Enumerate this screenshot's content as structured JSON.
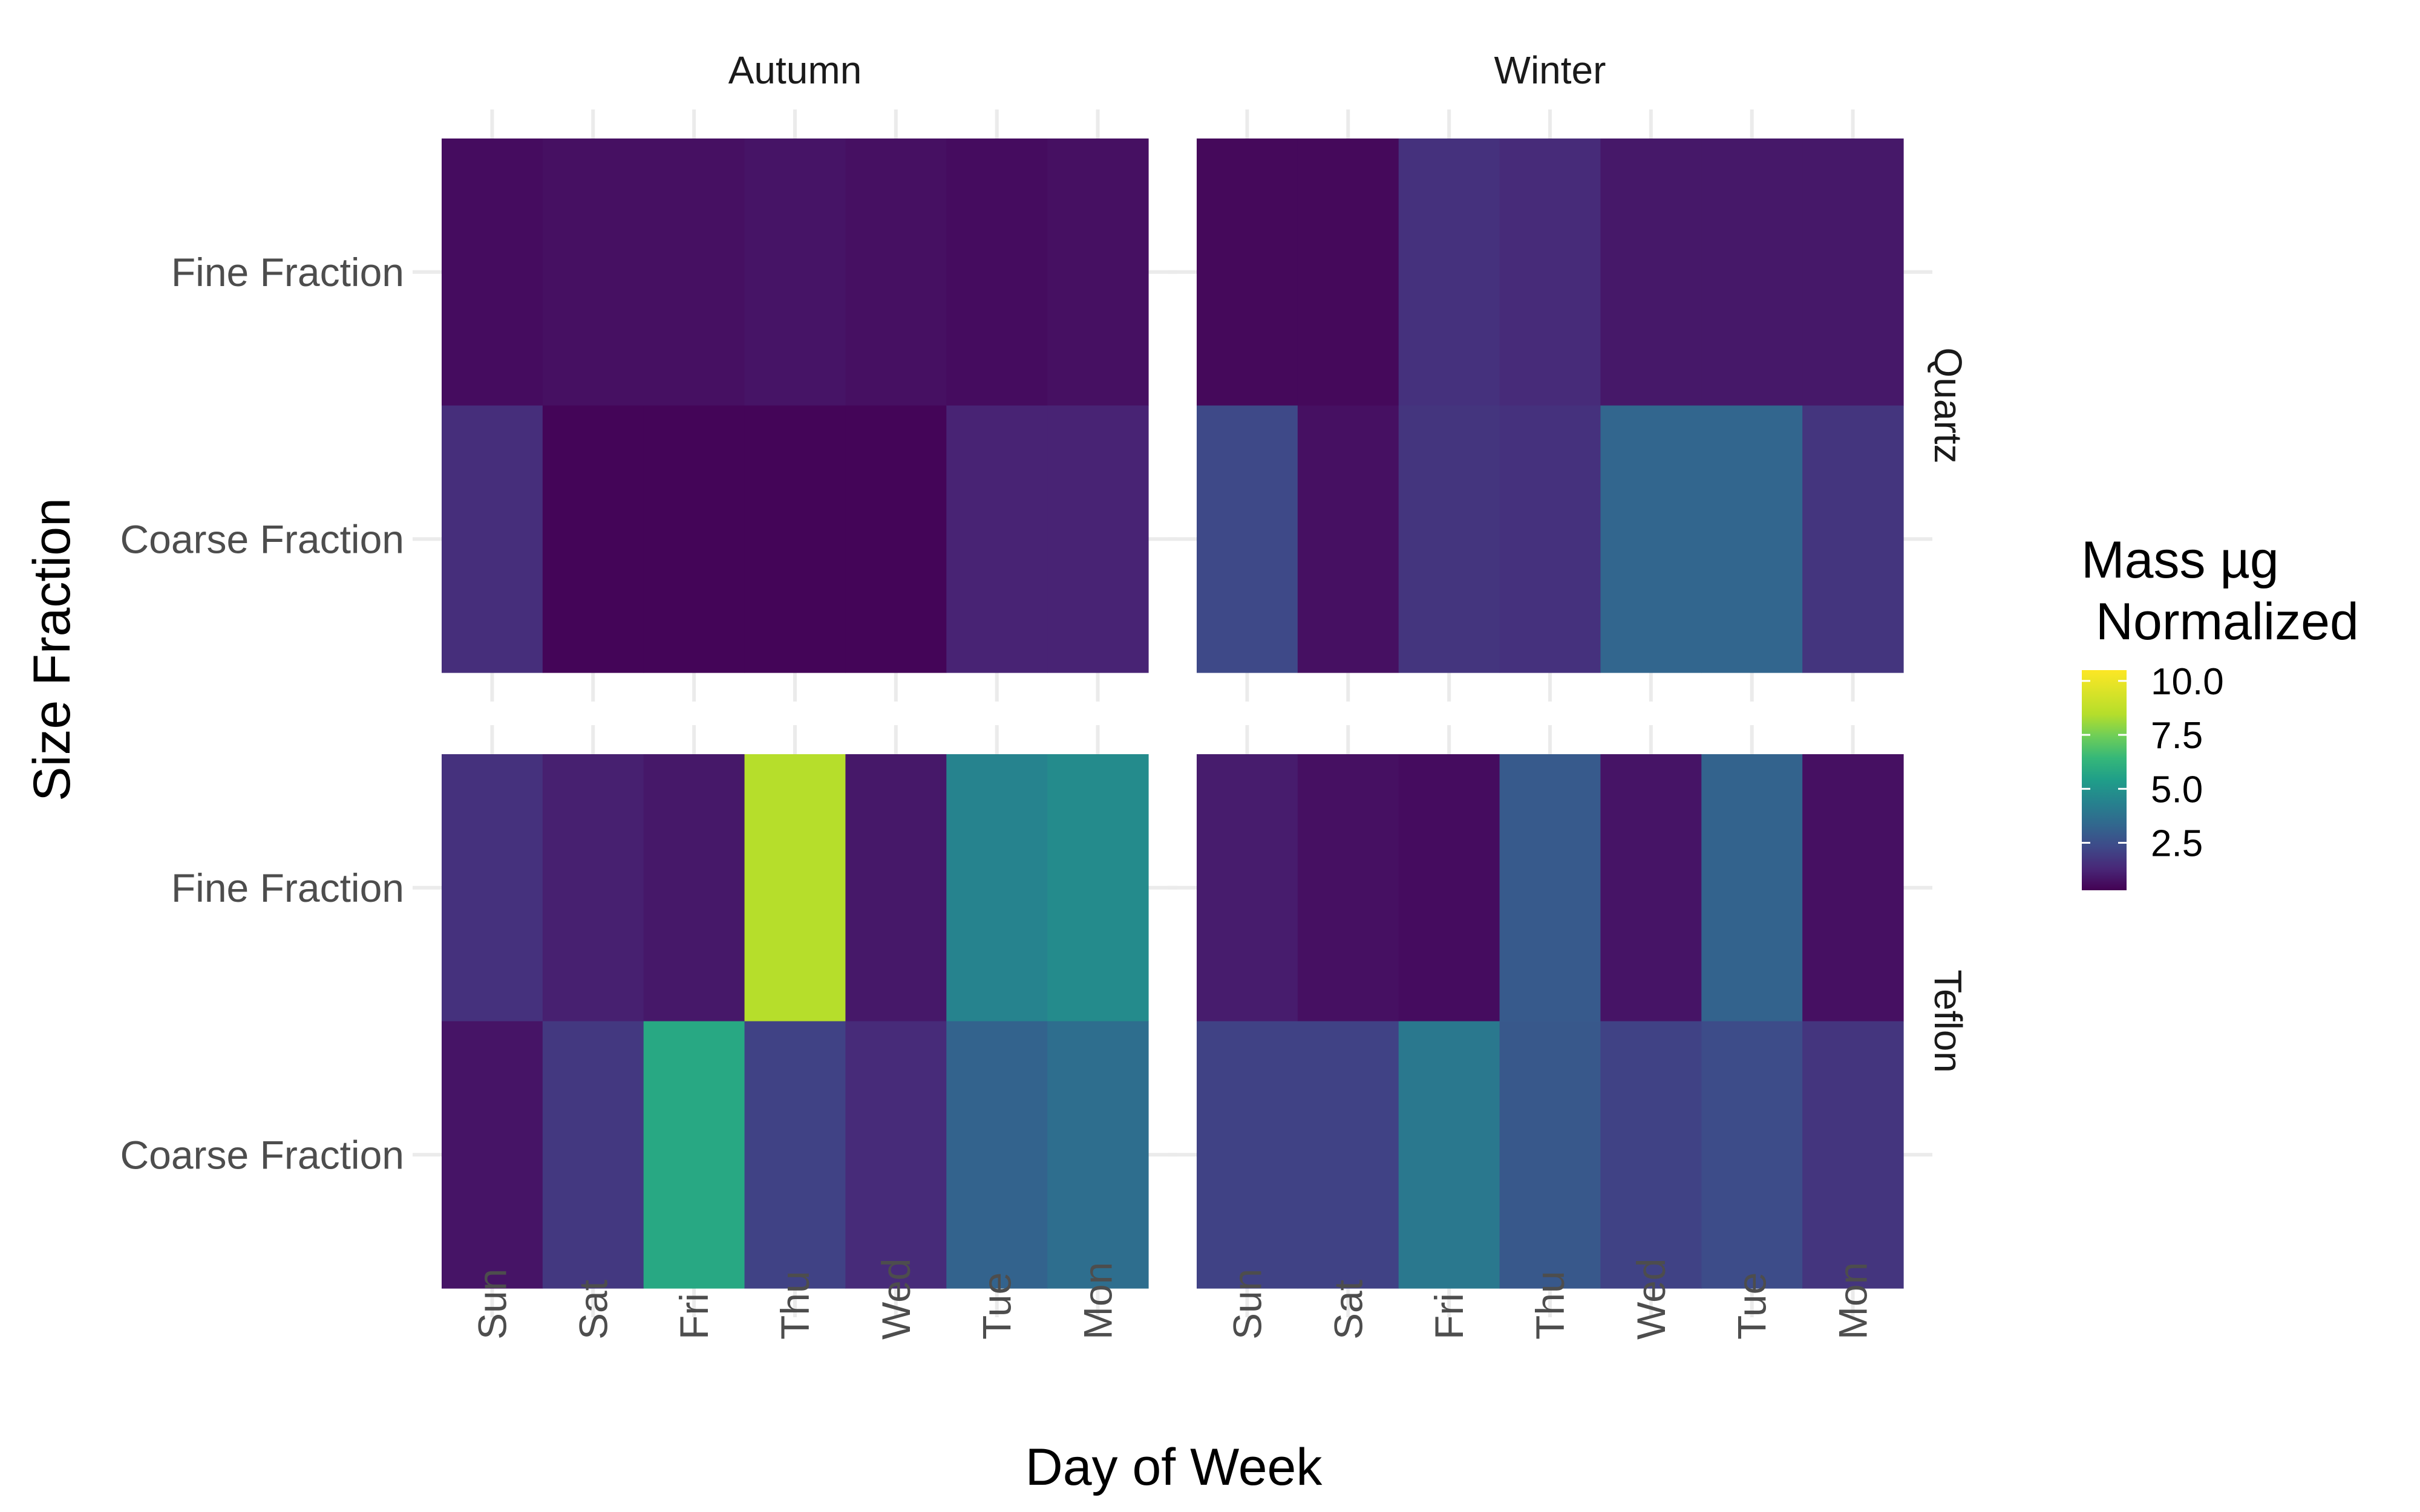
{
  "chart_data": {
    "type": "heatmap",
    "xlabel": "Day of Week",
    "ylabel": "Size Fraction",
    "x_categories": [
      "Sun",
      "Sat",
      "Fri",
      "Thu",
      "Wed",
      "Tue",
      "Mon"
    ],
    "y_categories": [
      "Fine Fraction",
      "Coarse Fraction"
    ],
    "column_facets": [
      "Autumn",
      "Winter"
    ],
    "row_facets": [
      "Quartz",
      "Teflon"
    ],
    "colorscale": "viridis",
    "value_range": [
      0.3,
      10.5
    ],
    "legend": {
      "title_lines": [
        "Mass µg",
        " Normalized"
      ],
      "ticks": [
        2.5,
        5.0,
        7.5,
        10.0
      ],
      "tick_labels": [
        "2.5",
        "5.0",
        "7.5",
        "10.0"
      ],
      "placement": "right"
    },
    "grid": true,
    "panels": [
      {
        "row": "Quartz",
        "column": "Autumn",
        "values": {
          "Fine Fraction": [
            0.6,
            0.7,
            0.7,
            0.8,
            0.7,
            0.6,
            0.7
          ],
          "Coarse Fraction": [
            1.5,
            0.4,
            0.4,
            0.4,
            0.4,
            1.2,
            1.2
          ]
        }
      },
      {
        "row": "Quartz",
        "column": "Winter",
        "values": {
          "Fine Fraction": [
            0.5,
            0.5,
            1.6,
            1.4,
            0.9,
            0.9,
            0.9
          ],
          "Coarse Fraction": [
            2.3,
            0.7,
            1.7,
            1.6,
            3.3,
            3.3,
            1.7
          ]
        }
      },
      {
        "row": "Teflon",
        "column": "Autumn",
        "values": {
          "Fine Fraction": [
            1.6,
            1.1,
            0.9,
            8.5,
            0.9,
            4.4,
            4.7
          ],
          "Coarse Fraction": [
            0.8,
            1.8,
            5.8,
            2.1,
            1.4,
            3.2,
            3.6
          ]
        }
      },
      {
        "row": "Teflon",
        "column": "Winter",
        "values": {
          "Fine Fraction": [
            1.0,
            0.7,
            0.6,
            2.9,
            0.8,
            3.2,
            0.7
          ],
          "Coarse Fraction": [
            2.1,
            2.1,
            4.0,
            2.8,
            2.1,
            2.4,
            1.7
          ]
        }
      }
    ]
  }
}
